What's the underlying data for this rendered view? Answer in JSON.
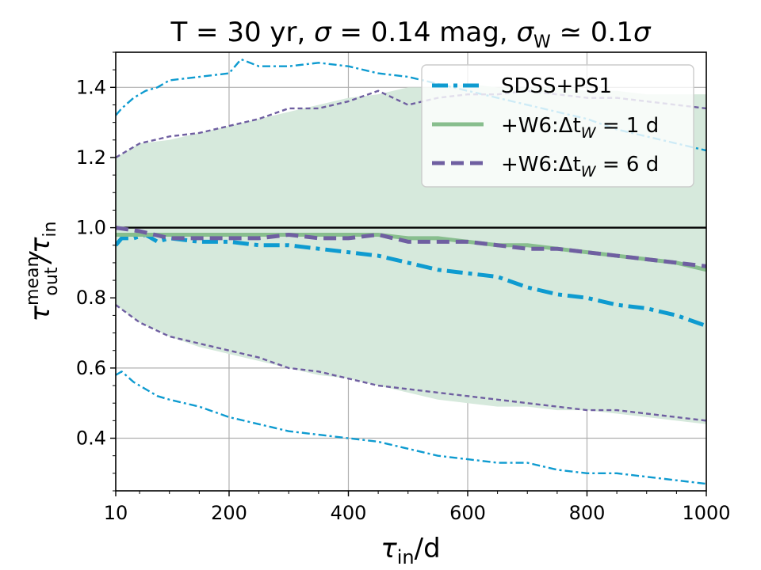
{
  "chart_data": {
    "type": "line",
    "title_parts": {
      "t": "T = 30 yr, ",
      "sigma": "σ",
      "sigma_eq": " = 0.14 mag, ",
      "sigma_w": "σ",
      "sigma_w_sub": "W",
      "approx": " ≃ 0.1",
      "sigma_end": "σ"
    },
    "xlabel": {
      "base": "τ",
      "sub": "in",
      "rest": "/d"
    },
    "ylabel": {
      "base": "τ",
      "sup": "mean",
      "sub": "out",
      "slash": "/τ",
      "sub2": "in"
    },
    "xlim": [
      10,
      1000
    ],
    "ylim": [
      0.25,
      1.5
    ],
    "x_ticks": [
      10,
      200,
      400,
      600,
      800,
      1000
    ],
    "x_tick_labels": [
      "10",
      "200",
      "400",
      "600",
      "800",
      "1000"
    ],
    "y_ticks": [
      0.4,
      0.6,
      0.8,
      1.0,
      1.2,
      1.4
    ],
    "y_tick_labels": [
      "0.4",
      "0.6",
      "0.8",
      "1.0",
      "1.2",
      "1.4"
    ],
    "grid": true,
    "reference_line": 1.0,
    "legend_position": "top-right",
    "legend": [
      {
        "label": "SDSS+PS1",
        "color": "#0e9bd0",
        "style": "dashdot"
      },
      {
        "label": "+W6:Δt",
        "sub": "W",
        "eq": " = 1 d",
        "color": "#88be8e",
        "style": "solid"
      },
      {
        "label": "+W6:Δt",
        "sub": "W",
        "eq": " = 6 d",
        "color": "#6f5fa1",
        "style": "dashed"
      }
    ],
    "band": {
      "name": "+W6:Δt_W = 1 d spread",
      "color": "#d6e9dc",
      "x": [
        10,
        50,
        100,
        150,
        200,
        250,
        300,
        350,
        400,
        450,
        500,
        550,
        600,
        650,
        700,
        750,
        800,
        850,
        900,
        950,
        1000
      ],
      "upper": [
        1.2,
        1.24,
        1.25,
        1.27,
        1.29,
        1.31,
        1.33,
        1.35,
        1.37,
        1.38,
        1.4,
        1.4,
        1.41,
        1.4,
        1.4,
        1.4,
        1.39,
        1.39,
        1.38,
        1.38,
        1.38
      ],
      "lower": [
        0.78,
        0.73,
        0.69,
        0.66,
        0.64,
        0.62,
        0.6,
        0.58,
        0.57,
        0.55,
        0.53,
        0.51,
        0.5,
        0.49,
        0.49,
        0.48,
        0.48,
        0.47,
        0.46,
        0.45,
        0.44
      ]
    },
    "series": [
      {
        "name": "SDSS+PS1",
        "role": "mean",
        "color": "#0e9bd0",
        "dash": "dashdot",
        "width": 5,
        "x": [
          10,
          20,
          40,
          60,
          80,
          100,
          150,
          200,
          250,
          300,
          350,
          400,
          450,
          500,
          550,
          600,
          650,
          700,
          750,
          800,
          850,
          900,
          950,
          1000
        ],
        "y": [
          0.95,
          0.97,
          0.97,
          0.98,
          0.96,
          0.97,
          0.96,
          0.96,
          0.95,
          0.95,
          0.94,
          0.93,
          0.92,
          0.9,
          0.88,
          0.87,
          0.86,
          0.83,
          0.81,
          0.8,
          0.78,
          0.77,
          0.75,
          0.72
        ]
      },
      {
        "name": "SDSS+PS1 upper",
        "role": "spread",
        "color": "#0e9bd0",
        "dash": "dashdot",
        "width": 2.4,
        "x": [
          10,
          20,
          40,
          60,
          80,
          100,
          150,
          200,
          220,
          250,
          300,
          350,
          400,
          450,
          500,
          550,
          600,
          650,
          700,
          750,
          800,
          850,
          900,
          950,
          1000
        ],
        "y": [
          1.32,
          1.34,
          1.37,
          1.39,
          1.4,
          1.42,
          1.43,
          1.44,
          1.48,
          1.46,
          1.46,
          1.47,
          1.46,
          1.44,
          1.43,
          1.41,
          1.39,
          1.37,
          1.35,
          1.33,
          1.31,
          1.28,
          1.26,
          1.24,
          1.22
        ]
      },
      {
        "name": "SDSS+PS1 lower",
        "role": "spread",
        "color": "#0e9bd0",
        "dash": "dashdot",
        "width": 2.4,
        "x": [
          10,
          20,
          40,
          60,
          80,
          100,
          150,
          200,
          250,
          300,
          350,
          400,
          450,
          500,
          550,
          600,
          650,
          700,
          750,
          800,
          850,
          900,
          950,
          1000
        ],
        "y": [
          0.58,
          0.59,
          0.56,
          0.54,
          0.52,
          0.51,
          0.49,
          0.46,
          0.44,
          0.42,
          0.41,
          0.4,
          0.39,
          0.37,
          0.35,
          0.34,
          0.33,
          0.33,
          0.31,
          0.3,
          0.3,
          0.29,
          0.28,
          0.27
        ]
      },
      {
        "name": "+W6:Δt_W = 1 d",
        "role": "mean",
        "color": "#88be8e",
        "dash": "solid",
        "width": 5,
        "x": [
          10,
          50,
          100,
          150,
          200,
          250,
          300,
          350,
          400,
          450,
          500,
          550,
          600,
          650,
          700,
          750,
          800,
          850,
          900,
          950,
          1000
        ],
        "y": [
          0.98,
          0.98,
          0.98,
          0.98,
          0.98,
          0.98,
          0.98,
          0.98,
          0.98,
          0.98,
          0.97,
          0.97,
          0.96,
          0.95,
          0.95,
          0.94,
          0.93,
          0.92,
          0.91,
          0.9,
          0.88
        ]
      },
      {
        "name": "+W6:Δt_W = 6 d",
        "role": "mean",
        "color": "#6f5fa1",
        "dash": "dashed",
        "width": 5,
        "x": [
          10,
          50,
          100,
          150,
          200,
          250,
          300,
          350,
          400,
          450,
          500,
          550,
          600,
          650,
          700,
          750,
          800,
          850,
          900,
          950,
          1000
        ],
        "y": [
          1.0,
          0.99,
          0.97,
          0.97,
          0.97,
          0.97,
          0.98,
          0.97,
          0.97,
          0.98,
          0.96,
          0.96,
          0.96,
          0.95,
          0.94,
          0.94,
          0.93,
          0.92,
          0.91,
          0.9,
          0.89
        ]
      },
      {
        "name": "+W6:Δt_W = 6 d upper",
        "role": "spread",
        "color": "#6f5fa1",
        "dash": "dashed",
        "width": 2.4,
        "x": [
          10,
          50,
          100,
          150,
          200,
          250,
          300,
          350,
          400,
          450,
          500,
          550,
          600,
          650,
          700,
          750,
          800,
          850,
          900,
          950,
          1000
        ],
        "y": [
          1.2,
          1.24,
          1.26,
          1.27,
          1.29,
          1.31,
          1.34,
          1.34,
          1.36,
          1.39,
          1.35,
          1.37,
          1.38,
          1.38,
          1.39,
          1.38,
          1.37,
          1.37,
          1.36,
          1.35,
          1.34
        ]
      },
      {
        "name": "+W6:Δt_W = 6 d lower",
        "role": "spread",
        "color": "#6f5fa1",
        "dash": "dashed",
        "width": 2.4,
        "x": [
          10,
          50,
          100,
          150,
          200,
          250,
          300,
          350,
          400,
          450,
          500,
          550,
          600,
          650,
          700,
          750,
          800,
          850,
          900,
          950,
          1000
        ],
        "y": [
          0.78,
          0.73,
          0.69,
          0.67,
          0.65,
          0.63,
          0.6,
          0.59,
          0.57,
          0.55,
          0.54,
          0.53,
          0.52,
          0.51,
          0.5,
          0.49,
          0.48,
          0.48,
          0.47,
          0.46,
          0.45
        ]
      }
    ]
  }
}
